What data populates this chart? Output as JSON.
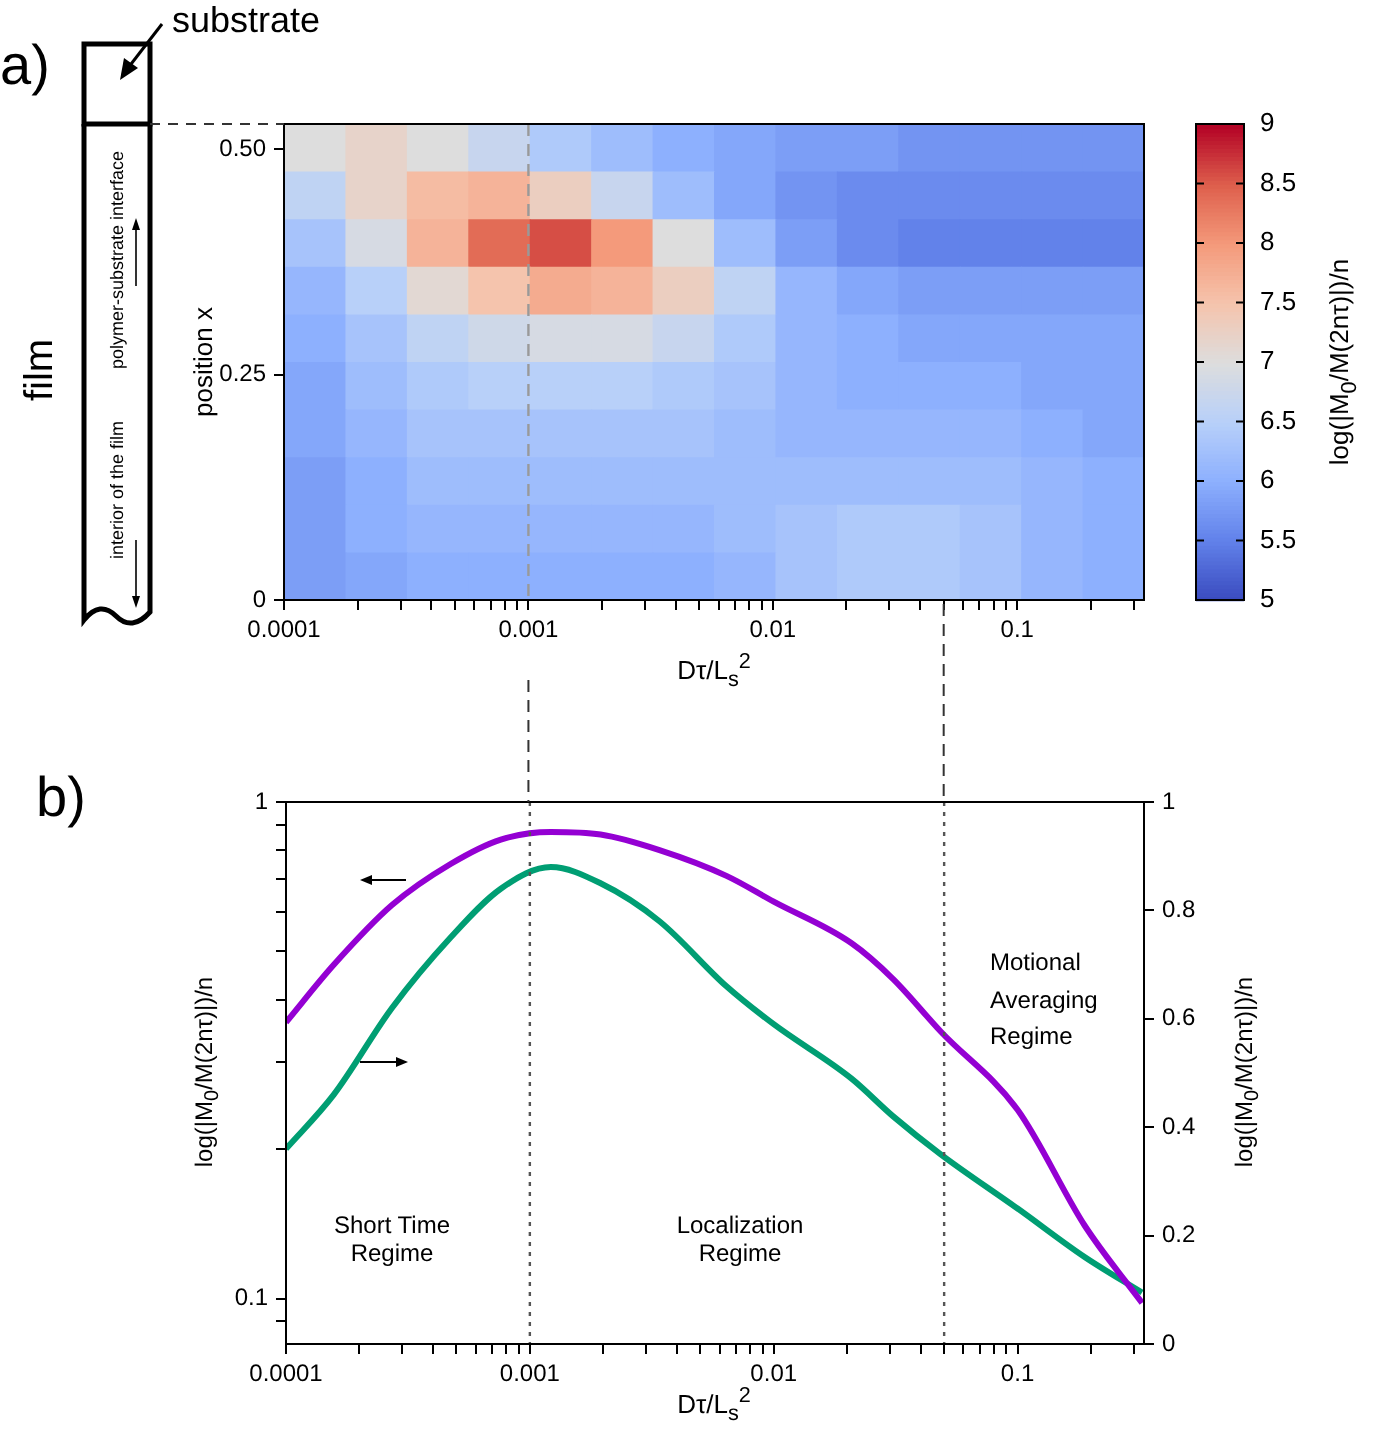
{
  "chart_data": [
    {
      "type": "heatmap",
      "xlabel": "Dτ/L$_{s}$$^{2}$",
      "ylabel": "position x",
      "clabel": "log(|M$_{0}$/M(2nτ)|)/n",
      "log": "x",
      "xlim": [
        0.0001,
        0.33
      ],
      "xticks": [
        0.0001,
        {
          "value": 0.0002,
          "label": null
        },
        {
          "value": 0.0003,
          "label": null
        },
        {
          "value": 0.0004,
          "label": null
        },
        {
          "value": 0.0005,
          "label": null
        },
        {
          "value": 0.0006,
          "label": null
        },
        {
          "value": 0.0007,
          "label": null
        },
        {
          "value": 0.0008,
          "label": null
        },
        {
          "value": 0.0009,
          "label": null
        },
        0.001,
        {
          "value": 0.002,
          "label": null
        },
        {
          "value": 0.003,
          "label": null
        },
        {
          "value": 0.004,
          "label": null
        },
        {
          "value": 0.005,
          "label": null
        },
        {
          "value": 0.006,
          "label": null
        },
        {
          "value": 0.007,
          "label": null
        },
        {
          "value": 0.008,
          "label": null
        },
        {
          "value": 0.009,
          "label": null
        },
        0.01,
        {
          "value": 0.02,
          "label": null
        },
        {
          "value": 0.03,
          "label": null
        },
        {
          "value": 0.04,
          "label": null
        },
        {
          "value": 0.05,
          "label": null
        },
        {
          "value": 0.06,
          "label": null
        },
        {
          "value": 0.07,
          "label": null
        },
        {
          "value": 0.08,
          "label": null
        },
        {
          "value": 0.09,
          "label": null
        },
        0.1,
        {
          "value": 0.2,
          "label": null
        },
        {
          "value": 0.3,
          "label": null
        }
      ],
      "ylim": [
        0,
        0.528
      ],
      "yticks": [
        0,
        0.25,
        {
          "value": 0.5,
          "label": "0.50"
        }
      ],
      "clim": [
        5,
        9
      ],
      "cticks": [
        5,
        5.5,
        6,
        6.5,
        7,
        7.5,
        8,
        8.5,
        9
      ],
      "cells": [
        [
          7.0,
          7.2,
          7.0,
          6.7,
          6.4,
          6.2,
          6.0,
          5.9,
          5.8,
          5.8,
          5.7,
          5.7,
          5.7,
          5.7
        ],
        [
          6.6,
          7.2,
          7.6,
          7.7,
          7.3,
          6.7,
          6.2,
          5.9,
          5.7,
          5.6,
          5.6,
          5.6,
          5.6,
          5.6
        ],
        [
          6.3,
          6.9,
          7.7,
          8.4,
          8.6,
          8.0,
          7.0,
          6.2,
          5.8,
          5.6,
          5.5,
          5.5,
          5.5,
          5.5
        ],
        [
          6.1,
          6.5,
          7.1,
          7.5,
          7.8,
          7.7,
          7.3,
          6.6,
          6.1,
          5.9,
          5.8,
          5.8,
          5.8,
          5.8
        ],
        [
          6.0,
          6.3,
          6.6,
          6.8,
          6.9,
          6.9,
          6.7,
          6.4,
          6.1,
          6.0,
          5.9,
          5.9,
          5.9,
          5.9
        ],
        [
          5.9,
          6.2,
          6.4,
          6.5,
          6.5,
          6.5,
          6.4,
          6.3,
          6.1,
          6.0,
          6.0,
          6.0,
          5.9,
          5.9
        ],
        [
          5.9,
          6.1,
          6.3,
          6.3,
          6.3,
          6.3,
          6.3,
          6.2,
          6.1,
          6.1,
          6.1,
          6.1,
          6.0,
          5.9
        ],
        [
          5.8,
          6.0,
          6.2,
          6.2,
          6.2,
          6.2,
          6.2,
          6.2,
          6.2,
          6.2,
          6.2,
          6.2,
          6.1,
          6.0
        ],
        [
          5.8,
          6.0,
          6.1,
          6.1,
          6.1,
          6.1,
          6.1,
          6.2,
          6.3,
          6.4,
          6.4,
          6.3,
          6.1,
          6.0
        ],
        [
          5.8,
          5.9,
          6.0,
          6.0,
          6.0,
          6.0,
          6.0,
          6.1,
          6.3,
          6.4,
          6.4,
          6.3,
          6.1,
          6.0
        ]
      ],
      "ref_lines": [
        {
          "axis": "x",
          "value": 0.001,
          "color": "#999999",
          "line_style": "dashed"
        }
      ],
      "annotations": [
        "a)",
        "substrate",
        "film",
        "polymer-substrate interface",
        "interior of the film"
      ]
    },
    {
      "type": "line",
      "xlabel": "Dτ/L$_{s}$$^{2}$",
      "ylabel": "log(|M$_{0}$/M(2nτ)|)/n",
      "y2label": "log(|M$_{0}$/M(2nτ)|)/n",
      "log": "xy",
      "marker": "none",
      "x": [
        0.0001,
        0.000157,
        0.000272,
        0.000473,
        0.00076,
        0.00122,
        0.00195,
        0.0034,
        0.0064,
        0.01,
        0.0208,
        0.0309,
        0.0484,
        0.1,
        0.189,
        0.324
      ],
      "series": [
        {
          "color": "#9400d3",
          "values": [
            0.36,
            0.47,
            0.62,
            0.75,
            0.84,
            0.87,
            0.86,
            0.8,
            0.71,
            0.63,
            0.52,
            0.44,
            0.345,
            0.24,
            0.14,
            0.098
          ]
        },
        {
          "color": "#009e73",
          "axis": "y2",
          "values": [
            0.36,
            0.46,
            0.62,
            0.75,
            0.84,
            0.88,
            0.85,
            0.78,
            0.66,
            0.59,
            0.49,
            0.42,
            0.35,
            0.25,
            0.16,
            0.095
          ]
        }
      ],
      "xlim": [
        0.0001,
        0.33
      ],
      "xticks": [
        0.0001,
        {
          "value": 0.0002,
          "label": null
        },
        {
          "value": 0.0003,
          "label": null
        },
        {
          "value": 0.0004,
          "label": null
        },
        {
          "value": 0.0005,
          "label": null
        },
        {
          "value": 0.0006,
          "label": null
        },
        {
          "value": 0.0007,
          "label": null
        },
        {
          "value": 0.0008,
          "label": null
        },
        {
          "value": 0.0009,
          "label": null
        },
        0.001,
        {
          "value": 0.002,
          "label": null
        },
        {
          "value": 0.003,
          "label": null
        },
        {
          "value": 0.004,
          "label": null
        },
        {
          "value": 0.005,
          "label": null
        },
        {
          "value": 0.006,
          "label": null
        },
        {
          "value": 0.007,
          "label": null
        },
        {
          "value": 0.008,
          "label": null
        },
        {
          "value": 0.009,
          "label": null
        },
        0.01,
        {
          "value": 0.02,
          "label": null
        },
        {
          "value": 0.03,
          "label": null
        },
        {
          "value": 0.04,
          "label": null
        },
        {
          "value": 0.05,
          "label": null
        },
        {
          "value": 0.06,
          "label": null
        },
        {
          "value": 0.07,
          "label": null
        },
        {
          "value": 0.08,
          "label": null
        },
        {
          "value": 0.09,
          "label": null
        },
        0.1,
        {
          "value": 0.2,
          "label": null
        },
        {
          "value": 0.3,
          "label": null
        }
      ],
      "ylim": [
        0.081,
        1
      ],
      "yticks": [
        {
          "value": 0.09,
          "label": null
        },
        0.1,
        {
          "value": 0.2,
          "label": null
        },
        {
          "value": 0.3,
          "label": null
        },
        {
          "value": 0.4,
          "label": null
        },
        {
          "value": 0.5,
          "label": null
        },
        {
          "value": 0.6,
          "label": null
        },
        {
          "value": 0.7,
          "label": null
        },
        {
          "value": 0.8,
          "label": null
        },
        {
          "value": 0.9,
          "label": null
        },
        1
      ],
      "y2lim": [
        0,
        1
      ],
      "y2ticks": [
        0,
        0.2,
        0.4,
        0.6,
        0.8,
        1
      ],
      "ref_lines": [
        {
          "axis": "x",
          "value": 0.001,
          "color": "#555555",
          "line_style": "dotted"
        },
        {
          "axis": "x",
          "value": 0.05,
          "color": "#555555",
          "line_style": "dotted"
        }
      ],
      "annotations": [
        "b)",
        "Short Time Regime",
        "Localization Regime",
        "Motional Averaging Regime"
      ]
    }
  ]
}
